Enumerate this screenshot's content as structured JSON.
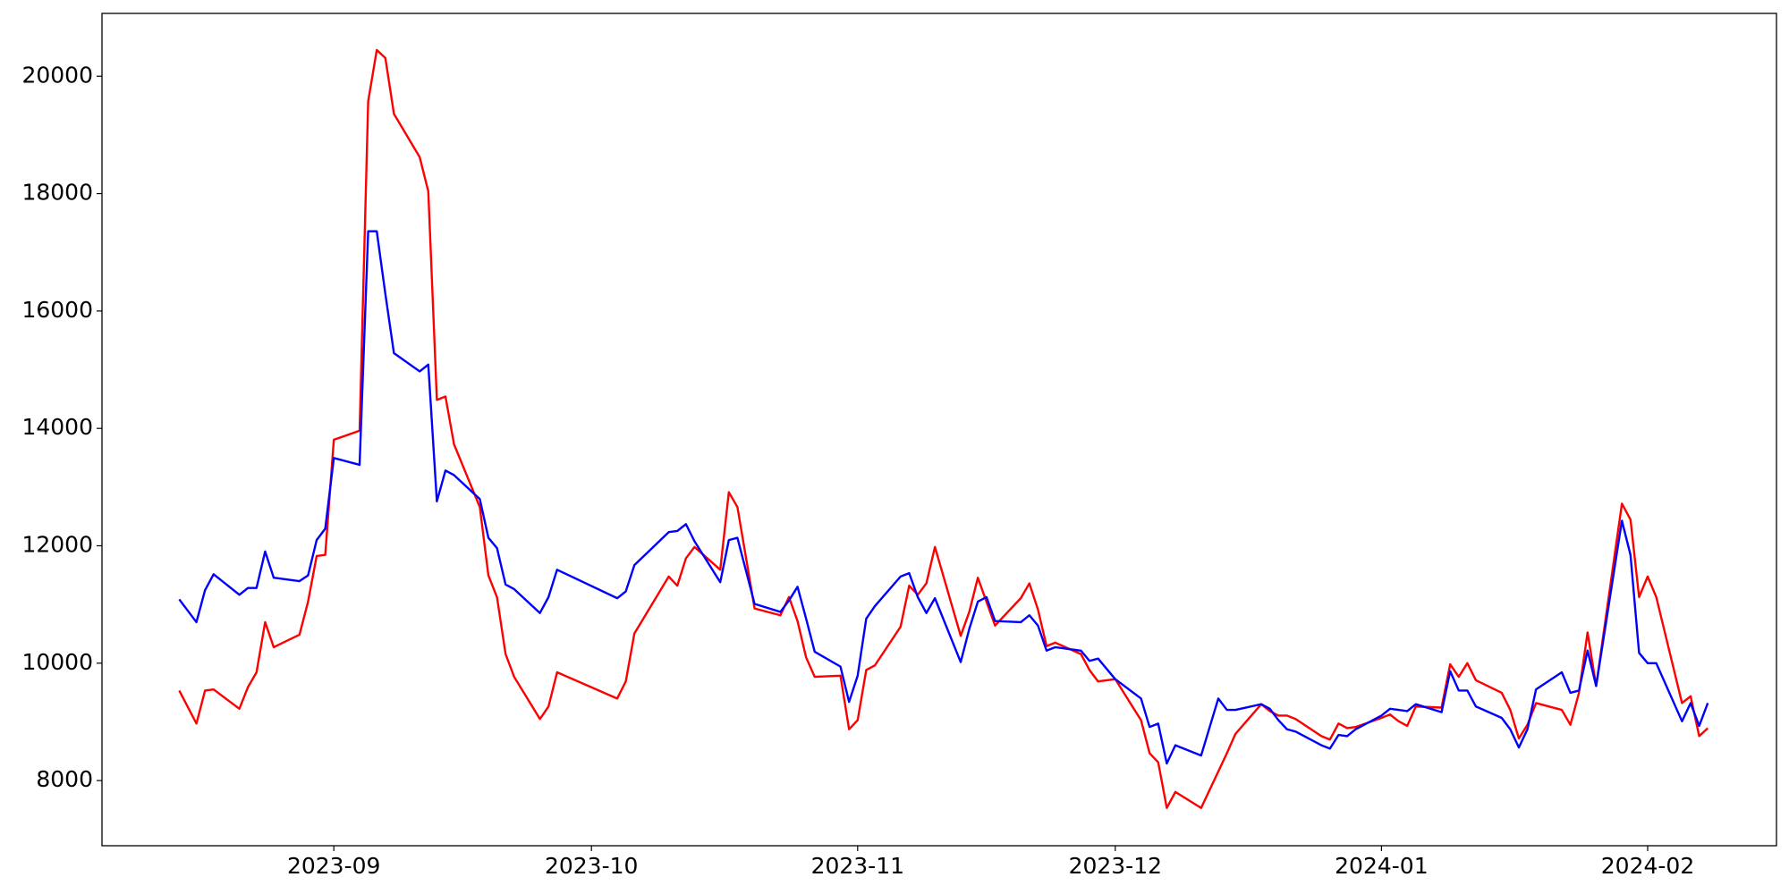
{
  "chart_data": {
    "type": "line",
    "x": [
      "2023-08-14",
      "2023-08-16",
      "2023-08-17",
      "2023-08-18",
      "2023-08-21",
      "2023-08-22",
      "2023-08-23",
      "2023-08-24",
      "2023-08-25",
      "2023-08-28",
      "2023-08-29",
      "2023-08-30",
      "2023-08-31",
      "2023-09-01",
      "2023-09-04",
      "2023-09-05",
      "2023-09-06",
      "2023-09-07",
      "2023-09-08",
      "2023-09-11",
      "2023-09-12",
      "2023-09-13",
      "2023-09-14",
      "2023-09-15",
      "2023-09-18",
      "2023-09-19",
      "2023-09-20",
      "2023-09-21",
      "2023-09-22",
      "2023-09-25",
      "2023-09-26",
      "2023-09-27",
      "2023-10-04",
      "2023-10-05",
      "2023-10-06",
      "2023-10-10",
      "2023-10-11",
      "2023-10-12",
      "2023-10-13",
      "2023-10-16",
      "2023-10-17",
      "2023-10-18",
      "2023-10-20",
      "2023-10-23",
      "2023-10-24",
      "2023-10-25",
      "2023-10-26",
      "2023-10-27",
      "2023-10-30",
      "2023-10-31",
      "2023-11-01",
      "2023-11-02",
      "2023-11-03",
      "2023-11-06",
      "2023-11-07",
      "2023-11-08",
      "2023-11-09",
      "2023-11-10",
      "2023-11-13",
      "2023-11-14",
      "2023-11-15",
      "2023-11-16",
      "2023-11-17",
      "2023-11-20",
      "2023-11-21",
      "2023-11-22",
      "2023-11-23",
      "2023-11-24",
      "2023-11-27",
      "2023-11-28",
      "2023-11-29",
      "2023-12-01",
      "2023-12-04",
      "2023-12-05",
      "2023-12-06",
      "2023-12-07",
      "2023-12-08",
      "2023-12-11",
      "2023-12-13",
      "2023-12-14",
      "2023-12-15",
      "2023-12-18",
      "2023-12-19",
      "2023-12-20",
      "2023-12-21",
      "2023-12-22",
      "2023-12-25",
      "2023-12-26",
      "2023-12-27",
      "2023-12-28",
      "2023-12-29",
      "2024-01-01",
      "2024-01-02",
      "2024-01-03",
      "2024-01-04",
      "2024-01-05",
      "2024-01-08",
      "2024-01-09",
      "2024-01-10",
      "2024-01-11",
      "2024-01-12",
      "2024-01-15",
      "2024-01-16",
      "2024-01-17",
      "2024-01-18",
      "2024-01-19",
      "2024-01-22",
      "2024-01-23",
      "2024-01-24",
      "2024-01-25",
      "2024-01-26",
      "2024-01-29",
      "2024-01-30",
      "2024-01-31",
      "2024-02-01",
      "2024-02-02",
      "2024-02-05",
      "2024-02-06",
      "2024-02-07",
      "2024-02-08"
    ],
    "series": [
      {
        "color": "#ff0000",
        "values": [
          9534,
          8971,
          9534,
          9553,
          9223,
          9592,
          9845,
          10699,
          10272,
          10485,
          11049,
          11825,
          11845,
          13806,
          13961,
          19573,
          20447,
          20311,
          19359,
          18621,
          18039,
          14485,
          14544,
          13728,
          12660,
          11495,
          11126,
          10155,
          9767,
          9049,
          9262,
          9845,
          9398,
          9689,
          10505,
          11476,
          11320,
          11786,
          11980,
          11592,
          12913,
          12660,
          10932,
          10816,
          11126,
          10718,
          10097,
          9767,
          9786,
          8874,
          9029,
          9883,
          9961,
          10621,
          11320,
          11165,
          11359,
          11980,
          10466,
          10874,
          11456,
          11049,
          10641,
          11107,
          11359,
          10913,
          10291,
          10350,
          10155,
          9883,
          9689,
          9728,
          9029,
          8466,
          8311,
          7534,
          7806,
          7534,
          8155,
          8466,
          8796,
          9301,
          9184,
          9107,
          9107,
          9049,
          8757,
          8699,
          8971,
          8893,
          8913,
          9068,
          9126,
          9010,
          8932,
          9262,
          9243,
          9981,
          9767,
          10000,
          9709,
          9495,
          9204,
          8718,
          8951,
          9320,
          9204,
          8951,
          9495,
          10524,
          9612,
          12718,
          12447,
          11126,
          11476,
          11126,
          9320,
          9437,
          8757,
          8893
        ]
      },
      {
        "color": "#0000ff",
        "values": [
          11087,
          10699,
          11243,
          11515,
          11165,
          11282,
          11282,
          11903,
          11456,
          11398,
          11495,
          12097,
          12291,
          13495,
          13379,
          17359,
          17359,
          16291,
          15282,
          14971,
          15087,
          12757,
          13282,
          13204,
          12796,
          12136,
          11961,
          11340,
          11262,
          10854,
          11126,
          11592,
          11107,
          11223,
          11670,
          12233,
          12252,
          12369,
          12078,
          11379,
          12097,
          12136,
          11010,
          10874,
          11068,
          11301,
          10757,
          10194,
          9942,
          9340,
          9786,
          10757,
          10971,
          11476,
          11534,
          11126,
          10854,
          11107,
          10019,
          10583,
          11049,
          11126,
          10718,
          10699,
          10816,
          10641,
          10214,
          10272,
          10214,
          10039,
          10078,
          9728,
          9398,
          8913,
          8971,
          8291,
          8602,
          8427,
          9398,
          9204,
          9204,
          9301,
          9223,
          9029,
          8874,
          8835,
          8602,
          8544,
          8777,
          8757,
          8874,
          9107,
          9223,
          9204,
          9184,
          9301,
          9165,
          9864,
          9534,
          9534,
          9262,
          9068,
          8874,
          8563,
          8874,
          9553,
          9845,
          9495,
          9534,
          10214,
          9612,
          12427,
          11845,
          10175,
          10000,
          10000,
          9010,
          9320,
          8932,
          9320
        ]
      }
    ],
    "xlim": [
      "2023-08-05",
      "2024-02-16"
    ],
    "xticks": [
      "2023-09",
      "2023-10",
      "2023-11",
      "2023-12",
      "2024-01",
      "2024-02"
    ],
    "ylim": [
      6890,
      21070
    ],
    "yticks": [
      8000,
      10000,
      12000,
      14000,
      16000,
      18000,
      20000
    ],
    "grid": false
  }
}
